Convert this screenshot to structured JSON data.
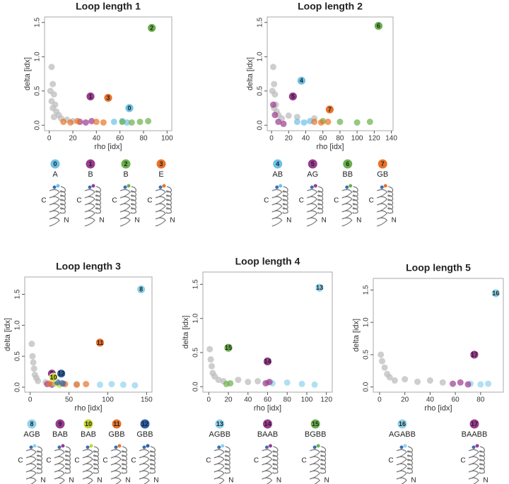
{
  "chart_data": [
    {
      "type": "scatter",
      "title": "Loop length 1",
      "x_label": "rho [idx]",
      "y_label": "delta [idx]",
      "terminals": [
        "C",
        "N"
      ],
      "xlim": [
        -4,
        104
      ],
      "ylim": [
        -0.08,
        1.58
      ],
      "xticks": [
        0,
        20,
        40,
        60,
        80,
        100
      ],
      "yticks": [
        {
          "value": 0,
          "label": "0.0"
        },
        0.5,
        {
          "value": 1,
          "label": "1.0"
        },
        1.5
      ],
      "background": {
        "color": "#bdbdbd",
        "x": [
          2,
          3,
          4,
          5,
          1,
          6,
          8,
          3,
          10,
          15,
          2,
          4,
          20
        ],
        "y": [
          0.85,
          0.6,
          0.45,
          0.3,
          0.5,
          0.2,
          0.15,
          0.25,
          0.1,
          0.08,
          0.35,
          0.12,
          0.06
        ]
      },
      "clusters": [
        {
          "id": "0",
          "sequence": "A",
          "color": "#6cc0e5",
          "x": 68,
          "y": 0.25,
          "members": {
            "x": [
              55,
              62,
              66
            ],
            "y": [
              0.05,
              0.06,
              0.04
            ]
          }
        },
        {
          "id": "1",
          "sequence": "B",
          "color": "#9b3b8f",
          "x": 35,
          "y": 0.42,
          "members": {
            "x": [
              26,
              31,
              36
            ],
            "y": [
              0.05,
              0.04,
              0.06
            ]
          }
        },
        {
          "id": "2",
          "sequence": "B",
          "color": "#6ab04c",
          "x": 87,
          "y": 1.42,
          "members": {
            "x": [
              62,
              70,
              77,
              84
            ],
            "y": [
              0.05,
              0.04,
              0.05,
              0.06
            ]
          }
        },
        {
          "id": "3",
          "sequence": "E",
          "color": "#e8732a",
          "x": 50,
          "y": 0.4,
          "members": {
            "x": [
              12,
              18,
              24,
              40,
              46
            ],
            "y": [
              0.05,
              0.04,
              0.06,
              0.05,
              0.04
            ]
          }
        }
      ]
    },
    {
      "type": "scatter",
      "title": "Loop length 2",
      "x_label": "rho [idx]",
      "y_label": "delta [idx]",
      "terminals": [
        "C",
        "N"
      ],
      "xlim": [
        -5,
        142
      ],
      "ylim": [
        -0.08,
        1.58
      ],
      "xticks": [
        0,
        20,
        40,
        60,
        80,
        100,
        120,
        140
      ],
      "yticks": [
        {
          "value": 0,
          "label": "0.0"
        },
        0.5,
        {
          "value": 1,
          "label": "1.0"
        },
        1.5
      ],
      "background": {
        "color": "#bdbdbd",
        "x": [
          2,
          3,
          4,
          1,
          5,
          6,
          8,
          3,
          12,
          30,
          50,
          20
        ],
        "y": [
          0.85,
          0.6,
          0.45,
          0.5,
          0.3,
          0.2,
          0.15,
          0.25,
          0.1,
          0.12,
          0.1,
          0.14
        ]
      },
      "clusters": [
        {
          "id": "4",
          "sequence": "AB",
          "color": "#6cc0e5",
          "x": 35,
          "y": 0.65,
          "members": {
            "x": [
              30,
              38,
              45
            ],
            "y": [
              0.05,
              0.04,
              0.06
            ]
          }
        },
        {
          "id": "5",
          "sequence": "AG",
          "color": "#9b3b8f",
          "x": 25,
          "y": 0.42,
          "members": {
            "x": [
              2,
              4,
              8,
              14
            ],
            "y": [
              0.3,
              0.15,
              0.05,
              0.02
            ]
          }
        },
        {
          "id": "6",
          "sequence": "BB",
          "color": "#6ab04c",
          "x": 125,
          "y": 1.45,
          "members": {
            "x": [
              60,
              80,
              100,
              115
            ],
            "y": [
              0.06,
              0.05,
              0.04,
              0.05
            ]
          }
        },
        {
          "id": "7",
          "sequence": "GB",
          "color": "#e8732a",
          "x": 68,
          "y": 0.23,
          "members": {
            "x": [
              50,
              58,
              66
            ],
            "y": [
              0.05,
              0.04,
              0.05
            ]
          }
        }
      ]
    },
    {
      "type": "scatter",
      "title": "Loop length 3",
      "x_label": "rho [idx]",
      "y_label": "delta [idx]",
      "terminals": [
        "C",
        "N"
      ],
      "xlim": [
        -7,
        157
      ],
      "ylim": [
        -0.08,
        1.78
      ],
      "xticks": [
        0,
        50,
        100,
        150
      ],
      "yticks": [
        {
          "value": 0,
          "label": "0.0"
        },
        0.5,
        {
          "value": 1,
          "label": "1.0"
        },
        1.5
      ],
      "background": {
        "color": "#bdbdbd",
        "x": [
          2,
          3,
          4,
          5,
          6,
          8,
          10,
          20,
          40,
          60
        ],
        "y": [
          0.7,
          0.5,
          0.4,
          0.3,
          0.2,
          0.15,
          0.1,
          0.08,
          0.07,
          0.05
        ]
      },
      "clusters": [
        {
          "id": "8",
          "sequence": "AGB",
          "color": "#8fd3ec",
          "x": 143,
          "y": 1.58,
          "members": {
            "x": [
              90,
              105,
              120,
              135
            ],
            "y": [
              0.04,
              0.05,
              0.04,
              0.03
            ]
          }
        },
        {
          "id": "9",
          "sequence": "BAB",
          "color": "#9b3b8f",
          "x": 28,
          "y": 0.22,
          "members": {
            "x": [
              22,
              28
            ],
            "y": [
              0.05,
              0.04
            ]
          }
        },
        {
          "id": "10",
          "sequence": "BAB",
          "color": "#c7d430",
          "x": 30,
          "y": 0.16,
          "members": {
            "x": [
              32,
              38
            ],
            "y": [
              0.06,
              0.04
            ]
          }
        },
        {
          "id": "11",
          "sequence": "GBB",
          "color": "#e8732a",
          "x": 90,
          "y": 0.72,
          "members": {
            "x": [
              25,
              45,
              60,
              72
            ],
            "y": [
              0.06,
              0.05,
              0.04,
              0.05
            ]
          }
        },
        {
          "id": "12",
          "sequence": "GBB",
          "color": "#2c5fa8",
          "x": 40,
          "y": 0.22,
          "members": {
            "x": [
              35,
              42
            ],
            "y": [
              0.08,
              0.06
            ]
          }
        }
      ]
    },
    {
      "type": "scatter",
      "title": "Loop length 4",
      "x_label": "rho [idx]",
      "y_label": "delta [idx]",
      "terminals": [
        "C",
        "N"
      ],
      "xlim": [
        -6,
        126
      ],
      "ylim": [
        -0.08,
        1.68
      ],
      "xticks": [
        0,
        20,
        40,
        60,
        80,
        100,
        120
      ],
      "yticks": [
        {
          "value": 0,
          "label": "0.0"
        },
        0.5,
        {
          "value": 1,
          "label": "1.0"
        },
        1.5
      ],
      "background": {
        "color": "#bdbdbd",
        "x": [
          1,
          2,
          3,
          4,
          6,
          10,
          15,
          30,
          40,
          50,
          60
        ],
        "y": [
          0.55,
          0.4,
          0.3,
          0.2,
          0.15,
          0.1,
          0.08,
          0.1,
          0.07,
          0.08,
          0.06
        ]
      },
      "clusters": [
        {
          "id": "13",
          "sequence": "AGBB",
          "color": "#8fd3ec",
          "x": 113,
          "y": 1.45,
          "members": {
            "x": [
              65,
              80,
              95,
              108
            ],
            "y": [
              0.05,
              0.06,
              0.04,
              0.03
            ]
          }
        },
        {
          "id": "14",
          "sequence": "BAAB",
          "color": "#9b3b8f",
          "x": 60,
          "y": 0.37,
          "members": {
            "x": [
              58,
              62
            ],
            "y": [
              0.05,
              0.07
            ]
          }
        },
        {
          "id": "15",
          "sequence": "BGBB",
          "color": "#6ab04c",
          "x": 20,
          "y": 0.57,
          "members": {
            "x": [
              18,
              22
            ],
            "y": [
              0.04,
              0.05
            ]
          }
        }
      ]
    },
    {
      "type": "scatter",
      "title": "Loop length 5",
      "x_label": "rho [idx]",
      "y_label": "delta [idx]",
      "terminals": [
        "C",
        "N"
      ],
      "xlim": [
        -5,
        98
      ],
      "ylim": [
        -0.08,
        1.68
      ],
      "xticks": [
        0,
        20,
        40,
        60,
        80
      ],
      "yticks": [
        {
          "value": 0,
          "label": "0.0"
        },
        0.5,
        {
          "value": 1,
          "label": "1.0"
        },
        1.5
      ],
      "background": {
        "color": "#bdbdbd",
        "x": [
          1,
          2,
          4,
          6,
          8,
          12,
          20,
          30,
          40,
          50
        ],
        "y": [
          0.5,
          0.4,
          0.3,
          0.2,
          0.15,
          0.1,
          0.12,
          0.08,
          0.1,
          0.07
        ]
      },
      "clusters": [
        {
          "id": "16",
          "sequence": "AGABB",
          "color": "#8fd3ec",
          "x": 92,
          "y": 1.45,
          "members": {
            "x": [
              72,
              80,
              86
            ],
            "y": [
              0.05,
              0.04,
              0.05
            ]
          }
        },
        {
          "id": "17",
          "sequence": "BAABB",
          "color": "#9b3b8f",
          "x": 75,
          "y": 0.5,
          "members": {
            "x": [
              58,
              64,
              70
            ],
            "y": [
              0.05,
              0.07,
              0.04
            ]
          }
        }
      ]
    }
  ]
}
